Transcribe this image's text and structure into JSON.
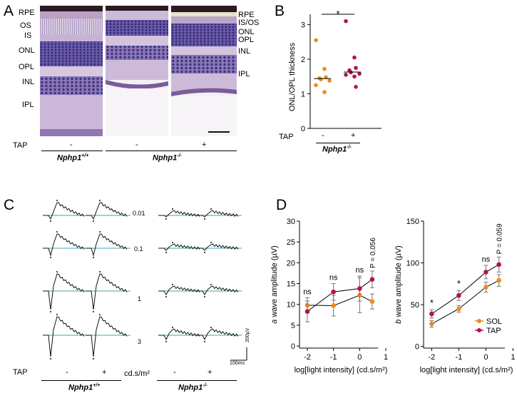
{
  "panels": {
    "A": "A",
    "B": "B",
    "C": "C",
    "D": "D"
  },
  "panelA": {
    "left_labels": [
      "RPE",
      "OS",
      "IS",
      "ONL",
      "OPL",
      "INL",
      "IPL"
    ],
    "right_labels": [
      "RPE",
      "IS/OS",
      "ONL",
      "OPL",
      "INL",
      "IPL"
    ],
    "tap_label": "TAP",
    "tap_values": [
      "-",
      "-",
      "+"
    ],
    "geno_wt": "Nphp1",
    "geno_wt_sup": "+/+",
    "geno_ko": "Nphp1",
    "geno_ko_sup": "-/-"
  },
  "panelB": {
    "ylabel": "ONL/OPL thickness",
    "yticks": [
      "0",
      "1",
      "2",
      "3"
    ],
    "sig": "*",
    "tap_label": "TAP",
    "tap_values": [
      "-",
      "+"
    ],
    "geno": "Nphp1",
    "geno_sup": "-/-"
  },
  "panelC": {
    "intensities": [
      "0.01",
      "0.1",
      "1",
      "3"
    ],
    "scale_v": "200µV",
    "scale_t": "100ms",
    "tap_label": "TAP",
    "tap_values": [
      "-",
      "+",
      "-",
      "+"
    ],
    "unit": "cd.s/m²",
    "geno_wt": "Nphp1",
    "geno_wt_sup": "+/+",
    "geno_ko": "Nphp1",
    "geno_ko_sup": "-/-"
  },
  "panelD": {
    "xlabel": "log[light intensity] (cd.s/m²)",
    "legend": [
      "SOL",
      "TAP"
    ]
  },
  "colors": {
    "sol": "#f08a1c",
    "tap": "#b5134b",
    "baseline": "#3aa8a8"
  },
  "chart_data": [
    {
      "type": "scatter",
      "title": "",
      "categories": [
        "-",
        "+"
      ],
      "ylabel": "ONL/OPL thickness",
      "ylim": [
        0,
        3.3
      ],
      "yticks": [
        0,
        1,
        2,
        3
      ],
      "series": [
        {
          "name": "-",
          "color": "#f08a1c",
          "values": [
            2.55,
            1.72,
            1.48,
            1.45,
            1.42,
            1.38,
            1.25,
            1.05
          ],
          "median": 1.44
        },
        {
          "name": "+",
          "color": "#b5134b",
          "values": [
            3.1,
            2.05,
            1.75,
            1.68,
            1.62,
            1.58,
            1.55,
            1.5,
            1.2
          ],
          "median": 1.63
        }
      ],
      "annotation": "*"
    },
    {
      "type": "line",
      "title": "",
      "xlabel": "log[light intensity] (cd.s/m²)",
      "ylabel": "a wave amplitude (µV)",
      "xlim": [
        -2.3,
        0.7
      ],
      "ylim": [
        -0.5,
        30
      ],
      "xticks": [
        -2,
        -1,
        0,
        1
      ],
      "yticks": [
        0,
        5,
        10,
        15,
        20,
        25,
        30
      ],
      "x": [
        -2,
        -1,
        0,
        0.48
      ],
      "series": [
        {
          "name": "SOL",
          "color": "#f08a1c",
          "values": [
            9.8,
            9.7,
            12.2,
            10.7
          ],
          "err": [
            1.8,
            2.5,
            4.2,
            1.8
          ]
        },
        {
          "name": "TAP",
          "color": "#b5134b",
          "values": [
            8.3,
            13.0,
            13.8,
            16.0
          ],
          "err": [
            2.5,
            2.0,
            3.0,
            2.0
          ]
        }
      ],
      "annotations": [
        "ns",
        "ns",
        "ns",
        "P = 0.056"
      ]
    },
    {
      "type": "line",
      "title": "",
      "xlabel": "log[light intensity] (cd.s/m²)",
      "ylabel": "b wave amplitude (µV)",
      "xlim": [
        -2.3,
        0.7
      ],
      "ylim": [
        -2,
        150
      ],
      "xticks": [
        -2,
        -1,
        0,
        1
      ],
      "yticks": [
        0,
        50,
        100,
        150
      ],
      "x": [
        -2,
        -1,
        0,
        0.48
      ],
      "series": [
        {
          "name": "SOL",
          "color": "#f08a1c",
          "values": [
            27,
            45,
            71,
            79
          ],
          "err": [
            4,
            4,
            6,
            7
          ]
        },
        {
          "name": "TAP",
          "color": "#b5134b",
          "values": [
            39,
            61,
            89,
            98
          ],
          "err": [
            5,
            6,
            8,
            9
          ]
        }
      ],
      "annotations": [
        "*",
        "*",
        "ns",
        "P = 0.059"
      ]
    }
  ]
}
